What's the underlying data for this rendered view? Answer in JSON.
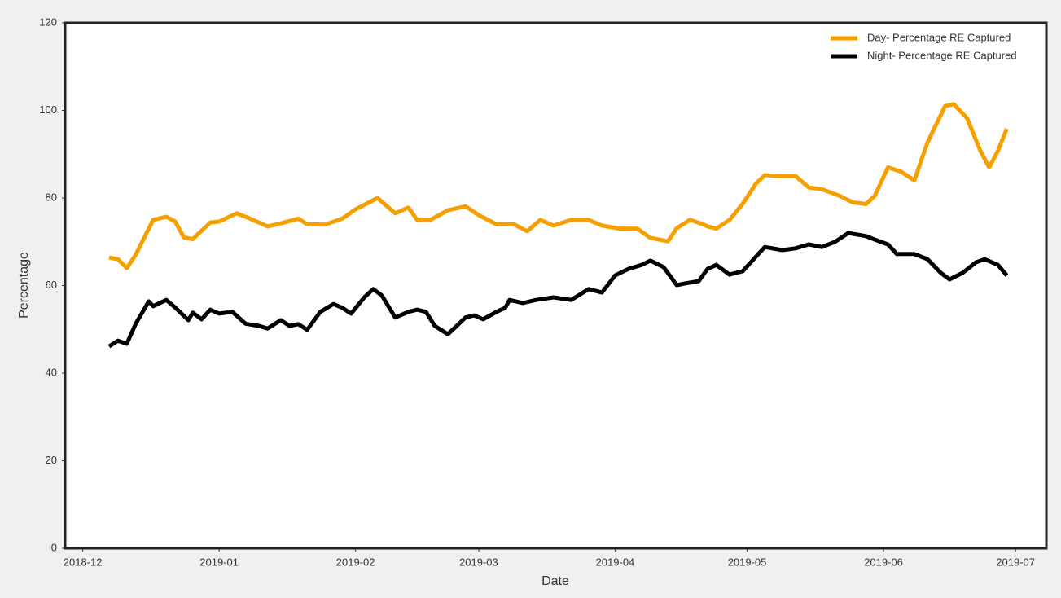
{
  "chart_data": {
    "type": "line",
    "xlabel": "Date",
    "ylabel": "Percentage",
    "xlim": [
      -4,
      219
    ],
    "ylim": [
      0,
      120
    ],
    "xticks": [
      {
        "value": 0,
        "label": "2018-12"
      },
      {
        "value": 31,
        "label": "2019-01"
      },
      {
        "value": 62,
        "label": "2019-02"
      },
      {
        "value": 90,
        "label": "2019-03"
      },
      {
        "value": 121,
        "label": "2019-04"
      },
      {
        "value": 151,
        "label": "2019-05"
      },
      {
        "value": 182,
        "label": "2019-06"
      },
      {
        "value": 212,
        "label": "2019-07"
      }
    ],
    "yticks": [
      0,
      20,
      40,
      60,
      80,
      100,
      120
    ],
    "legend": "upper right",
    "series": [
      {
        "name": "Day- Percentage RE Captured",
        "color": "#f5a000",
        "x": [
          6,
          8,
          10,
          12,
          14,
          16,
          19,
          21,
          23,
          25,
          29,
          31,
          35,
          38,
          42,
          45,
          49,
          51,
          55,
          59,
          62,
          67,
          71,
          74,
          76,
          79,
          83,
          87,
          90,
          94,
          98,
          101,
          104,
          107,
          111,
          115,
          118,
          122,
          126,
          129,
          133,
          135,
          138,
          141,
          142,
          144,
          147,
          150,
          153,
          155,
          158,
          162,
          165,
          168,
          172,
          175,
          178,
          180,
          183,
          186,
          189,
          192,
          196,
          198,
          201,
          204,
          206,
          208,
          210
        ],
        "values": [
          66.4,
          66,
          64,
          67,
          71,
          75,
          75.7,
          74.6,
          71,
          70.6,
          74.4,
          74.6,
          76.5,
          75.3,
          73.5,
          74.2,
          75.3,
          74,
          73.9,
          75.3,
          77.4,
          80,
          76.5,
          77.8,
          75,
          75,
          77.2,
          78.1,
          76.1,
          74,
          74,
          72.4,
          75,
          73.7,
          75,
          75,
          73.7,
          73,
          73,
          70.9,
          70.1,
          73.1,
          75,
          74,
          73.5,
          73,
          75,
          78.7,
          83.3,
          85.2,
          85,
          85,
          82.4,
          82,
          80.5,
          79,
          78.6,
          80.5,
          87,
          86,
          84,
          92.7,
          101,
          101.4,
          98.2,
          90.8,
          87,
          90.8,
          95.8
        ]
      },
      {
        "name": "Night- Percentage RE Captured",
        "color": "#000000",
        "x": [
          6,
          8,
          10,
          12,
          15,
          16,
          19,
          21,
          24,
          25,
          27,
          29,
          31,
          34,
          37,
          40,
          42,
          45,
          47,
          49,
          51,
          54,
          57,
          59,
          61,
          64,
          66,
          68,
          71,
          74,
          76,
          78,
          80,
          83,
          85,
          87,
          89,
          91,
          94,
          96,
          97,
          100,
          103,
          107,
          111,
          115,
          118,
          121,
          124,
          127,
          129,
          132,
          135,
          137,
          140,
          142,
          144,
          147,
          150,
          153,
          155,
          159,
          162,
          165,
          168,
          171,
          174,
          178,
          180,
          183,
          185,
          189,
          192,
          195,
          197,
          200,
          203,
          205,
          208,
          210
        ],
        "values": [
          46.1,
          47.4,
          46.7,
          51.2,
          56.4,
          55.3,
          56.7,
          55,
          52.1,
          53.8,
          52.3,
          54.5,
          53.6,
          54,
          51.3,
          50.8,
          50.2,
          52.1,
          50.8,
          51.2,
          49.9,
          54,
          55.8,
          54.9,
          53.6,
          57.3,
          59.2,
          57.7,
          52.7,
          54,
          54.5,
          54,
          50.8,
          48.9,
          50.8,
          52.7,
          53.2,
          52.3,
          54,
          54.9,
          56.7,
          56,
          56.7,
          57.3,
          56.7,
          59.2,
          58.4,
          62.3,
          63.8,
          64.7,
          65.7,
          64.2,
          60.1,
          60.5,
          61,
          63.8,
          64.7,
          62.5,
          63.3,
          66.6,
          68.8,
          68.1,
          68.5,
          69.4,
          68.8,
          70,
          72,
          71.3,
          70.5,
          69.4,
          67.2,
          67.2,
          66,
          62.9,
          61.4,
          62.9,
          65.3,
          66,
          64.7,
          62.3
        ]
      }
    ]
  }
}
